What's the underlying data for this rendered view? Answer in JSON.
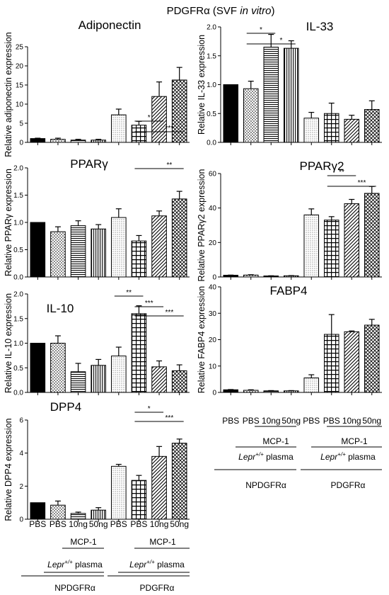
{
  "figure": {
    "title_prefix": "PDGFRα (SVF ",
    "title_italic": "in vitro",
    "title_suffix": ")"
  },
  "conditions": {
    "treatments": [
      "PBS",
      "PBS",
      "10ng",
      "50ng",
      "PBS",
      "PBS",
      "10ng",
      "50ng"
    ],
    "mcp1": "MCP-1",
    "lepr_gene": "Lepr",
    "lepr_sup": "+/+",
    "plasma": " plasma",
    "group_np": "NPDGFRα",
    "group_p": "PDGFRα"
  },
  "bar_fills": [
    "#000000",
    "dots",
    "horizontal-lines",
    "vertical-lines",
    "fine-dots",
    "grid",
    "diagonal-lines",
    "crosshatch"
  ],
  "chart_data": [
    {
      "type": "bar",
      "title": "Adiponectin",
      "ylabel": "Relative adiponectin expression",
      "ylim": [
        0,
        25
      ],
      "yticks": [
        0,
        5,
        10,
        15,
        20,
        25
      ],
      "values": [
        1.0,
        0.8,
        0.6,
        0.6,
        7.2,
        4.5,
        12.0,
        16.3
      ],
      "errors": [
        0.1,
        0.3,
        0.2,
        0.2,
        1.5,
        1.0,
        3.8,
        3.3
      ],
      "significance": [
        {
          "from": 5,
          "to": 6,
          "label": "*"
        },
        {
          "from": 5,
          "to": 7,
          "label": "***"
        }
      ]
    },
    {
      "type": "bar",
      "title": "IL-33",
      "ylabel": "Relative IL-33 expression",
      "ylim": [
        0,
        2.0
      ],
      "yticks": [
        0.0,
        0.5,
        1.0,
        1.5,
        2.0
      ],
      "values": [
        1.0,
        0.93,
        1.65,
        1.63,
        0.42,
        0.5,
        0.4,
        0.57
      ],
      "errors": [
        0.0,
        0.13,
        0.22,
        0.13,
        0.1,
        0.18,
        0.07,
        0.15
      ],
      "significance": [
        {
          "from": 1,
          "to": 2,
          "label": "*"
        },
        {
          "from": 1,
          "to": 3,
          "label": "*"
        }
      ]
    },
    {
      "type": "bar",
      "title": "PPARγ",
      "ylabel": "Relative PPARγ expression",
      "ylim": [
        0,
        2.0
      ],
      "yticks": [
        0.0,
        0.5,
        1.0,
        1.5,
        2.0
      ],
      "values": [
        1.0,
        0.83,
        0.94,
        0.88,
        1.09,
        0.66,
        1.12,
        1.43
      ],
      "errors": [
        0.0,
        0.09,
        0.09,
        0.08,
        0.16,
        0.1,
        0.09,
        0.14
      ],
      "significance": [
        {
          "from": 5,
          "to": 7,
          "label": "**"
        }
      ]
    },
    {
      "type": "bar",
      "title": "PPARγ2",
      "ylabel": "Relative PPARγ2 expression",
      "ylim": [
        0,
        60
      ],
      "yticks": [
        0,
        20,
        40,
        60
      ],
      "values": [
        1.0,
        1.1,
        0.6,
        0.7,
        36.0,
        33.0,
        42.5,
        48.5
      ],
      "errors": [
        0.1,
        0.2,
        0.1,
        0.1,
        3.5,
        2.0,
        2.5,
        4.0
      ],
      "significance": [
        {
          "from": 5,
          "to": 6,
          "label": "**"
        },
        {
          "from": 5,
          "to": 7,
          "label": "***"
        }
      ]
    },
    {
      "type": "bar",
      "title": "IL-10",
      "ylabel": "Relative IL-10 expression",
      "ylim": [
        0,
        2.0
      ],
      "yticks": [
        0.0,
        0.5,
        1.0,
        1.5,
        2.0
      ],
      "values": [
        1.0,
        1.0,
        0.42,
        0.55,
        0.74,
        1.6,
        0.52,
        0.44
      ],
      "errors": [
        0.0,
        0.15,
        0.17,
        0.12,
        0.18,
        0.16,
        0.12,
        0.12
      ],
      "significance": [
        {
          "from": 4,
          "to": 5,
          "label": "**"
        },
        {
          "from": 5,
          "to": 6,
          "label": "***"
        },
        {
          "from": 5,
          "to": 7,
          "label": "***"
        }
      ]
    },
    {
      "type": "bar",
      "title": "FABP4",
      "ylabel": "Relative FABP4 expression",
      "ylim": [
        0,
        40
      ],
      "yticks": [
        0,
        10,
        20,
        30,
        40
      ],
      "values": [
        1.0,
        0.8,
        0.6,
        0.6,
        5.5,
        22.0,
        23.0,
        25.5
      ],
      "errors": [
        0.1,
        0.2,
        0.1,
        0.1,
        1.2,
        7.5,
        0.3,
        2.2
      ],
      "significance": []
    },
    {
      "type": "bar",
      "title": "DPP4",
      "ylabel": "Relative DPP4 expression",
      "ylim": [
        0,
        6
      ],
      "yticks": [
        0,
        2,
        4,
        6
      ],
      "values": [
        1.0,
        0.85,
        0.35,
        0.55,
        3.2,
        2.35,
        3.8,
        4.6
      ],
      "errors": [
        0.0,
        0.25,
        0.08,
        0.15,
        0.12,
        0.3,
        0.6,
        0.25
      ],
      "significance": [
        {
          "from": 5,
          "to": 6,
          "label": "*"
        },
        {
          "from": 5,
          "to": 7,
          "label": "***"
        }
      ]
    }
  ]
}
